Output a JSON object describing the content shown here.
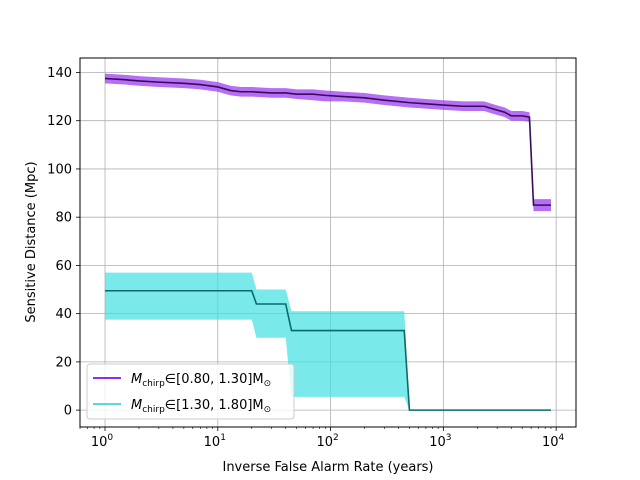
{
  "chart_data": {
    "type": "line",
    "xlabel": "Inverse False Alarm Rate (years)",
    "ylabel": "Sensitive Distance (Mpc)",
    "xscale": "log",
    "xlim": [
      0.6,
      15000
    ],
    "ylim": [
      -7,
      146
    ],
    "x_ticks": [
      {
        "value": 1,
        "base": "10",
        "exp": "0"
      },
      {
        "value": 10,
        "base": "10",
        "exp": "1"
      },
      {
        "value": 100,
        "base": "10",
        "exp": "2"
      },
      {
        "value": 1000,
        "base": "10",
        "exp": "3"
      },
      {
        "value": 10000,
        "base": "10",
        "exp": "4"
      }
    ],
    "y_ticks": [
      0,
      20,
      40,
      60,
      80,
      100,
      120,
      140
    ],
    "grid": true,
    "legend_placement": "lower-left",
    "series": [
      {
        "legend_symbol": "M",
        "legend_sub": "chirp",
        "legend_rest": "∈[0.80, 1.30]M",
        "legend_sub2": "⊙",
        "color": "#7b0ef2",
        "band_color": "#9d3ff0",
        "line_color": "#3a0a5c",
        "x": [
          1,
          1.5,
          2,
          3,
          5,
          7,
          10,
          13,
          16,
          20,
          30,
          40,
          50,
          70,
          90,
          130,
          200,
          300,
          500,
          700,
          1000,
          1500,
          2300,
          2700,
          3500,
          4000,
          5000,
          5800,
          6300,
          9000
        ],
        "y": [
          137.5,
          137,
          136.5,
          136,
          135.5,
          135,
          134,
          132.5,
          132,
          132,
          131.5,
          131.5,
          131,
          131,
          130.5,
          130,
          129.5,
          128.5,
          127.5,
          127,
          126.5,
          126,
          126,
          125,
          123.5,
          122,
          122,
          121.5,
          85,
          85
        ],
        "lower": [
          135.5,
          135,
          134.5,
          134,
          133.5,
          133,
          132,
          130.5,
          130,
          130,
          129.5,
          129.5,
          129,
          128.5,
          128,
          128,
          127.5,
          126.5,
          125.5,
          125,
          124.5,
          124,
          124,
          123,
          121.5,
          120,
          120,
          119.5,
          82.5,
          82.5
        ],
        "upper": [
          139.5,
          139,
          138.5,
          138,
          137.5,
          137,
          136,
          134.5,
          134,
          134,
          133.5,
          133.5,
          133,
          133,
          132.5,
          132,
          131.5,
          130.5,
          129.5,
          129,
          128.5,
          128,
          128,
          127,
          125.5,
          124,
          124,
          123.5,
          87.5,
          87.5
        ]
      },
      {
        "legend_symbol": "M",
        "legend_sub": "chirp",
        "legend_rest": "∈[1.30, 1.80]M",
        "legend_sub2": "⊙",
        "color": "#40d5d5",
        "band_color": "#40e0e0",
        "line_color": "#0b6a66",
        "x": [
          1,
          20,
          22,
          40,
          45,
          450,
          500,
          9000
        ],
        "y": [
          49.5,
          49.5,
          44,
          44,
          33,
          33,
          0,
          0
        ],
        "lower": [
          37.5,
          37.5,
          30,
          30,
          5.5,
          5.5,
          0,
          0
        ],
        "upper": [
          57,
          57,
          50,
          50,
          41,
          41,
          0,
          0
        ]
      }
    ]
  }
}
